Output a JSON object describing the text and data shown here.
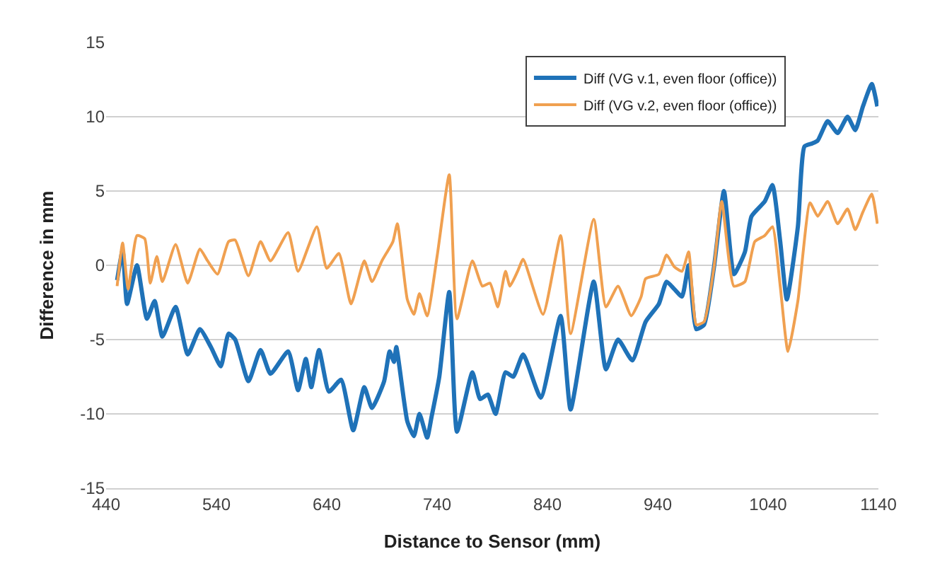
{
  "chart_data": {
    "type": "line",
    "xlabel": "Distance to Sensor (mm)",
    "ylabel": "Difference in mm",
    "xlim": [
      440,
      1140
    ],
    "xticks": [
      440,
      540,
      640,
      740,
      840,
      940,
      1040,
      1140
    ],
    "ylim": [
      -15,
      15
    ],
    "yticks": [
      -15,
      -10,
      -5,
      0,
      5,
      10,
      15
    ],
    "grid": "y",
    "legend": "top right",
    "marker": "none",
    "line_style": "solid",
    "series": [
      {
        "name": "Diff (VG v.1, even floor (office))",
        "color": "#1f72b8",
        "x": [
          450,
          455,
          459,
          468,
          477,
          484,
          491,
          503,
          514,
          525,
          535,
          544,
          551,
          557,
          569,
          580,
          589,
          605,
          614,
          621,
          626,
          633,
          642,
          653,
          664,
          674,
          681,
          692,
          697,
          701,
          703,
          713,
          719,
          724,
          731,
          735,
          742,
          751,
          758,
          772,
          779,
          786,
          793,
          802,
          809,
          818,
          834,
          852,
          861,
          882,
          893,
          904,
          917,
          929,
          941,
          948,
          955,
          962,
          968,
          975,
          982,
          991,
          1000,
          1009,
          1019,
          1025,
          1037,
          1044,
          1051,
          1057,
          1067,
          1073,
          1080,
          1085,
          1094,
          1103,
          1112,
          1119,
          1126,
          1134,
          1139
        ],
        "values": [
          -1.0,
          1.0,
          -2.6,
          0,
          -3.6,
          -2.4,
          -4.8,
          -2.8,
          -6.0,
          -4.3,
          -5.5,
          -6.8,
          -4.6,
          -5.0,
          -7.8,
          -5.7,
          -7.3,
          -5.8,
          -8.4,
          -6.3,
          -8.2,
          -5.7,
          -8.5,
          -7.7,
          -11.1,
          -8.2,
          -9.6,
          -7.8,
          -5.8,
          -6.5,
          -5.5,
          -10.5,
          -11.5,
          -10.0,
          -11.6,
          -10.2,
          -7.5,
          -1.8,
          -11.2,
          -7.2,
          -9.0,
          -8.7,
          -10.0,
          -7.2,
          -7.5,
          -6.0,
          -8.9,
          -3.4,
          -9.7,
          -1.1,
          -7.0,
          -5.0,
          -6.4,
          -3.8,
          -2.6,
          -1.1,
          -1.6,
          -2.1,
          0,
          -4.3,
          -4.0,
          -0.1,
          5.0,
          -0.6,
          0.9,
          3.3,
          4.3,
          5.4,
          1.6,
          -2.3,
          2.6,
          8.0,
          8.2,
          8.4,
          9.7,
          8.9,
          10.0,
          9.1,
          10.7,
          12.2,
          10.7
        ]
      },
      {
        "name": "Diff (VG v.2, even floor (office))",
        "color": "#f0a050",
        "x": [
          450,
          455,
          460,
          468,
          475,
          480,
          486,
          491,
          503,
          514,
          525,
          532,
          541,
          551,
          557,
          569,
          580,
          589,
          605,
          614,
          631,
          640,
          651,
          662,
          674,
          681,
          690,
          700,
          704,
          713,
          719,
          724,
          731,
          740,
          751,
          758,
          772,
          781,
          788,
          795,
          802,
          806,
          813,
          818,
          836,
          852,
          861,
          882,
          893,
          904,
          916,
          925,
          929,
          941,
          948,
          955,
          962,
          968,
          975,
          982,
          991,
          998,
          1009,
          1019,
          1028,
          1037,
          1044,
          1051,
          1058,
          1067,
          1078,
          1085,
          1094,
          1103,
          1112,
          1119,
          1126,
          1134,
          1139
        ],
        "values": [
          -1.4,
          1.5,
          -1.6,
          2.0,
          1.8,
          -1.2,
          0.6,
          -1.1,
          1.4,
          -1.2,
          1.1,
          0.3,
          -0.6,
          1.6,
          1.7,
          -0.7,
          1.6,
          0.3,
          2.2,
          -0.4,
          2.6,
          -0.2,
          0.8,
          -2.6,
          0.3,
          -1.1,
          0.3,
          1.6,
          2.8,
          -2.3,
          -3.3,
          -1.9,
          -3.4,
          0.6,
          6.1,
          -3.6,
          0.3,
          -1.4,
          -1.2,
          -2.8,
          -0.4,
          -1.4,
          -0.4,
          0.4,
          -3.3,
          2.0,
          -4.6,
          3.1,
          -2.8,
          -1.4,
          -3.4,
          -2.1,
          -0.9,
          -0.6,
          0.7,
          -0.1,
          -0.4,
          0.9,
          -4.0,
          -3.8,
          -0.1,
          4.3,
          -1.4,
          -1.1,
          1.6,
          2.0,
          2.6,
          -1.4,
          -5.8,
          -2.4,
          4.2,
          3.3,
          4.3,
          2.8,
          3.8,
          2.4,
          3.6,
          4.8,
          2.8
        ]
      }
    ]
  }
}
